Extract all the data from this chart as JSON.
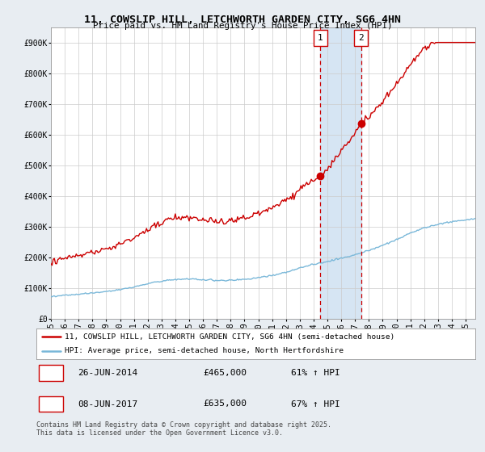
{
  "title": "11, COWSLIP HILL, LETCHWORTH GARDEN CITY, SG6 4HN",
  "subtitle": "Price paid vs. HM Land Registry's House Price Index (HPI)",
  "legend_line1": "11, COWSLIP HILL, LETCHWORTH GARDEN CITY, SG6 4HN (semi-detached house)",
  "legend_line2": "HPI: Average price, semi-detached house, North Hertfordshire",
  "annotation1_label": "1",
  "annotation1_date": "26-JUN-2014",
  "annotation1_price": "£465,000",
  "annotation1_hpi": "61% ↑ HPI",
  "annotation2_label": "2",
  "annotation2_date": "08-JUN-2017",
  "annotation2_price": "£635,000",
  "annotation2_hpi": "67% ↑ HPI",
  "footer": "Contains HM Land Registry data © Crown copyright and database right 2025.\nThis data is licensed under the Open Government Licence v3.0.",
  "sale1_year": 2014.49,
  "sale1_value": 465000,
  "sale2_year": 2017.44,
  "sale2_value": 635000,
  "hpi_color": "#7ab8d9",
  "price_color": "#cc0000",
  "background_color": "#e8edf2",
  "plot_bg_color": "#ffffff",
  "shade_color": "#ccdff0",
  "grid_color": "#cccccc",
  "ylim": [
    0,
    950000
  ],
  "xlim_start": 1995.0,
  "xlim_end": 2025.7,
  "tick_years": [
    1995,
    1996,
    1997,
    1998,
    1999,
    2000,
    2001,
    2002,
    2003,
    2004,
    2005,
    2006,
    2007,
    2008,
    2009,
    2010,
    2011,
    2012,
    2013,
    2014,
    2015,
    2016,
    2017,
    2018,
    2019,
    2020,
    2021,
    2022,
    2023,
    2024,
    2025
  ],
  "yticks": [
    0,
    100000,
    200000,
    300000,
    400000,
    500000,
    600000,
    700000,
    800000,
    900000
  ],
  "yticklabels": [
    "£0",
    "£100K",
    "£200K",
    "£300K",
    "£400K",
    "£500K",
    "£600K",
    "£700K",
    "£800K",
    "£900K"
  ]
}
